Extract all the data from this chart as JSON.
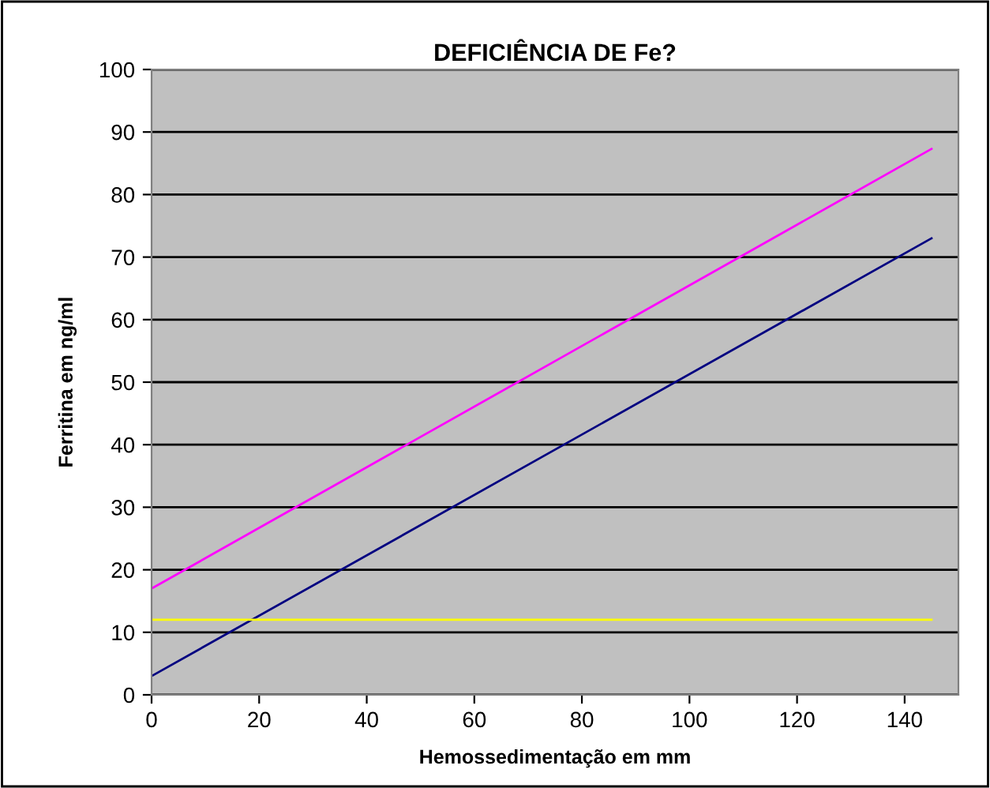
{
  "chart_data": {
    "type": "line",
    "title": "DEFICIÊNCIA DE Fe?",
    "xlabel": "Hemossedimentação em mm",
    "ylabel": "Ferritina em ng/ml",
    "x": [
      0,
      145
    ],
    "series": [
      {
        "color": "#ff00ff",
        "values": [
          17,
          87.3
        ]
      },
      {
        "color": "#000080",
        "values": [
          3,
          73
        ]
      },
      {
        "color": "#ffff00",
        "values": [
          12,
          12
        ]
      }
    ],
    "xlim": [
      0,
      150
    ],
    "xticks": [
      0,
      20,
      40,
      60,
      80,
      100,
      120,
      140
    ],
    "ylim": [
      0,
      100
    ],
    "yticks": [
      0,
      10,
      20,
      30,
      40,
      50,
      60,
      70,
      80,
      90,
      100
    ],
    "grid": "y",
    "legend": false,
    "marker": "none",
    "line_style": "solid"
  }
}
